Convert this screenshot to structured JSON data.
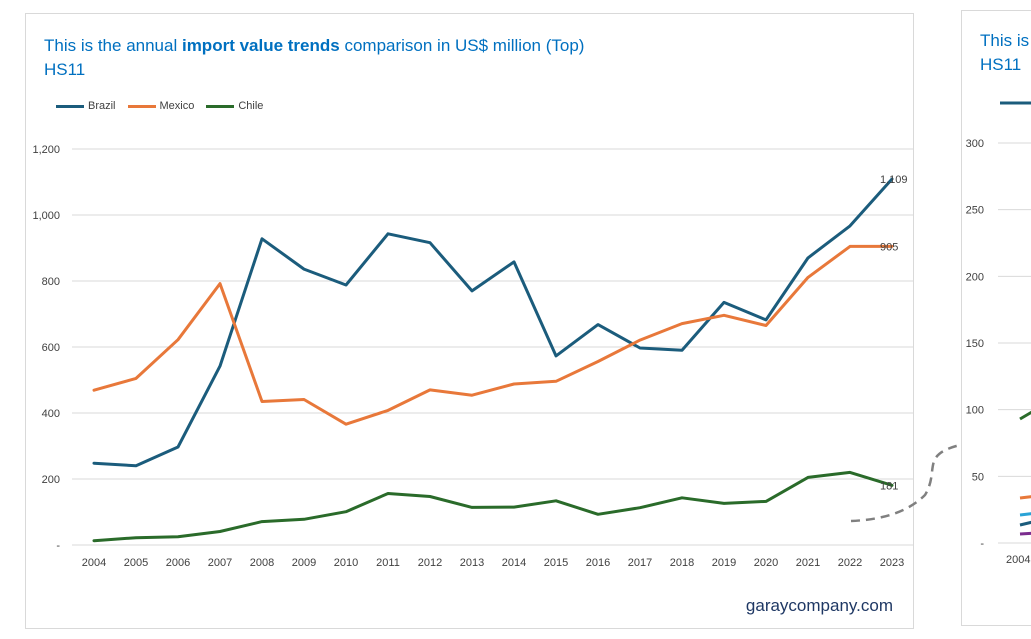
{
  "main_chart": {
    "title_prefix": "This is the annual ",
    "title_bold": "import value trends",
    "title_suffix": " comparison in US$ million (Top)",
    "title_line2": "HS11",
    "brand": "garaycompany.com",
    "colors": {
      "Brazil": "#1b5c7c",
      "Mexico": "#e8783a",
      "Chile": "#2a6b2a",
      "grid": "#d9d9d9",
      "axis_text": "#404040"
    }
  },
  "side_chart": {
    "title_prefix": "This is",
    "title_line2": "HS11",
    "y_ticks": [
      "300",
      "250",
      "200",
      "150",
      "100",
      "50",
      "-"
    ],
    "x_first_tick": "2004",
    "colors": {
      "line_a": "#1b5c7c",
      "line_b": "#2a6b2a",
      "line_c": "#e8783a",
      "line_d": "#29a3d6",
      "line_e": "#7b2d8e"
    }
  },
  "chart_data": {
    "type": "line",
    "title": "This is the annual import value trends comparison in US$ million (Top) HS11",
    "xlabel": "",
    "ylabel": "",
    "x": [
      "2004",
      "2005",
      "2006",
      "2007",
      "2008",
      "2009",
      "2010",
      "2011",
      "2012",
      "2013",
      "2014",
      "2015",
      "2016",
      "2017",
      "2018",
      "2019",
      "2020",
      "2021",
      "2022",
      "2023"
    ],
    "ylim": [
      0,
      1200
    ],
    "y_ticks": [
      0,
      200,
      400,
      600,
      800,
      1000,
      1200
    ],
    "y_tick_labels": [
      "-",
      "200",
      "400",
      "600",
      "800",
      "1,000",
      "1,200"
    ],
    "grid": true,
    "legend_position": "top-left",
    "series": [
      {
        "name": "Brazil",
        "values": [
          248,
          240,
          297,
          542,
          928,
          836,
          788,
          943,
          916,
          770,
          858,
          573,
          668,
          597,
          590,
          735,
          682,
          870,
          967,
          1109
        ],
        "end_label": "1,109"
      },
      {
        "name": "Mexico",
        "values": [
          469,
          505,
          622,
          792,
          435,
          441,
          366,
          408,
          470,
          454,
          488,
          496,
          556,
          621,
          671,
          696,
          665,
          811,
          905,
          905
        ],
        "end_label": "905"
      },
      {
        "name": "Chile",
        "values": [
          13,
          22,
          25,
          41,
          71,
          78,
          101,
          156,
          147,
          114,
          115,
          134,
          93,
          113,
          143,
          126,
          132,
          205,
          220,
          181
        ],
        "end_label": "181"
      }
    ]
  }
}
